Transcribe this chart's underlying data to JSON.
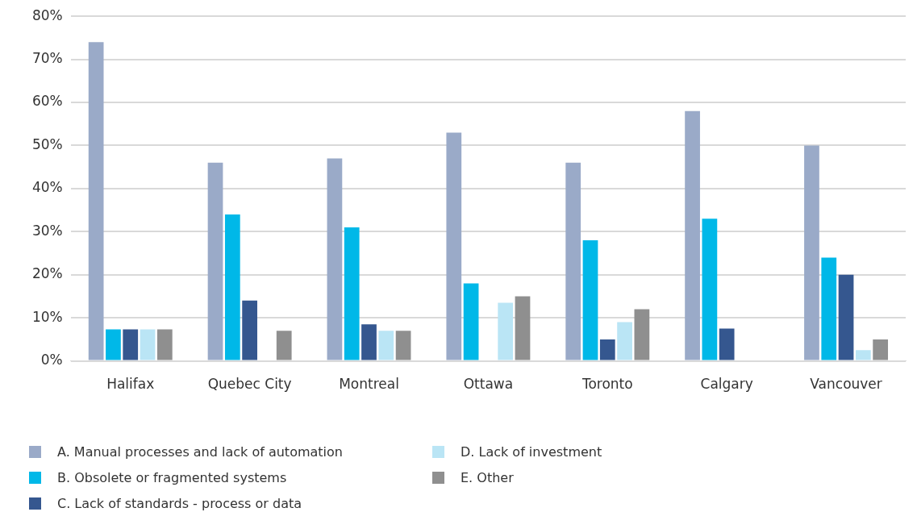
{
  "chart_data": {
    "type": "bar",
    "categories": [
      "Halifax",
      "Quebec City",
      "Montreal",
      "Ottawa",
      "Toronto",
      "Calgary",
      "Vancouver"
    ],
    "series": [
      {
        "name": "A. Manual processes and lack of automation",
        "color": "#9aaac8",
        "values": [
          74,
          46,
          47,
          53,
          46,
          58,
          50
        ]
      },
      {
        "name": "B. Obsolete or fragmented systems",
        "color": "#00b8e8",
        "values": [
          7.3,
          34,
          31,
          18,
          28,
          33,
          24
        ]
      },
      {
        "name": "C. Lack of standards - process or data",
        "color": "#35578f",
        "values": [
          7.3,
          14,
          8.5,
          null,
          5,
          7.5,
          20
        ]
      },
      {
        "name": "D. Lack of investment",
        "color": "#bae5f5",
        "values": [
          7.3,
          null,
          7,
          13.5,
          9,
          null,
          2.5
        ]
      },
      {
        "name": "E. Other",
        "color": "#8f8f8f",
        "values": [
          7.3,
          7,
          7,
          15,
          12,
          null,
          5
        ]
      }
    ],
    "ylim": [
      0,
      80
    ],
    "yticks": [
      {
        "value": 0,
        "label": "0%"
      },
      {
        "value": 10,
        "label": "10%"
      },
      {
        "value": 20,
        "label": "20%"
      },
      {
        "value": 30,
        "label": "30%"
      },
      {
        "value": 40,
        "label": "40%"
      },
      {
        "value": 50,
        "label": "50%"
      },
      {
        "value": 60,
        "label": "60%"
      },
      {
        "value": 70,
        "label": "70%"
      },
      {
        "value": 80,
        "label": "80%"
      }
    ],
    "grid": "y",
    "legend": "bottom"
  }
}
